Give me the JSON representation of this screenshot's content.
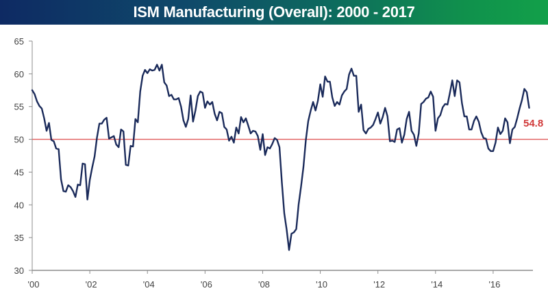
{
  "header": {
    "title": "ISM Manufacturing (Overall): 2000 - 2017"
  },
  "colors": {
    "line": "#1a2a5a",
    "reference": "#e05a5a",
    "end_label": "#d13b3b",
    "axis": "#8c8c8c"
  },
  "chart_data": {
    "type": "line",
    "title": "ISM Manufacturing (Overall): 2000 - 2017",
    "xlabel": "",
    "ylabel": "",
    "ylim": [
      30,
      65
    ],
    "yticks": [
      30,
      35,
      40,
      45,
      50,
      55,
      60,
      65
    ],
    "ytick_labels": [
      "30",
      "35",
      "40",
      "45",
      "50",
      "55",
      "60",
      "65"
    ],
    "xlim": [
      2000.0,
      2017.5
    ],
    "xticks": [
      2000,
      2002,
      2004,
      2006,
      2008,
      2010,
      2012,
      2014,
      2016
    ],
    "xtick_labels": [
      "'00",
      "'02",
      "'04",
      "'06",
      "'08",
      "'10",
      "'12",
      "'14",
      "'16"
    ],
    "grid": false,
    "legend": "none",
    "reference_line": {
      "y": 50,
      "label": ""
    },
    "end_annotation": "54.8",
    "start": "2000-01",
    "frequency": "monthly",
    "series": [
      {
        "name": "ISM Manufacturing",
        "values": [
          57.5,
          56.9,
          55.8,
          55.1,
          54.7,
          53.2,
          51.3,
          52.5,
          49.9,
          49.7,
          48.6,
          48.5,
          43.9,
          42.1,
          42.0,
          43.0,
          42.7,
          42.1,
          41.2,
          43.1,
          43.0,
          46.3,
          46.2,
          40.8,
          43.8,
          45.7,
          47.4,
          50.3,
          52.4,
          52.4,
          53.0,
          53.3,
          50.1,
          50.3,
          50.5,
          49.2,
          48.8,
          51.5,
          51.2,
          46.1,
          46.0,
          49.0,
          48.9,
          53.1,
          52.6,
          57.3,
          59.7,
          60.6,
          60.1,
          60.7,
          60.5,
          60.6,
          61.4,
          60.5,
          61.4,
          58.7,
          58.2,
          56.6,
          56.8,
          56.1,
          56.1,
          56.3,
          55.0,
          52.9,
          51.9,
          53.1,
          56.7,
          52.7,
          54.4,
          56.6,
          57.3,
          57.1,
          54.8,
          55.8,
          55.3,
          55.7,
          53.9,
          52.9,
          54.2,
          54.0,
          51.9,
          51.5,
          49.8,
          50.4,
          49.5,
          51.8,
          50.9,
          53.4,
          52.6,
          53.2,
          52.1,
          50.9,
          51.3,
          51.2,
          50.5,
          48.4,
          50.8,
          47.6,
          48.8,
          48.6,
          49.3,
          50.2,
          49.9,
          48.8,
          43.4,
          38.7,
          36.2,
          33.1,
          35.6,
          35.8,
          36.3,
          40.1,
          42.8,
          45.8,
          49.9,
          52.8,
          54.4,
          55.7,
          54.4,
          55.9,
          58.4,
          56.5,
          59.6,
          58.8,
          58.8,
          56.4,
          55.1,
          55.7,
          55.3,
          56.7,
          57.3,
          57.7,
          59.9,
          60.8,
          59.7,
          59.7,
          54.2,
          55.3,
          51.4,
          50.9,
          51.6,
          51.8,
          52.2,
          53.1,
          54.1,
          52.4,
          53.4,
          54.8,
          53.5,
          49.7,
          49.8,
          49.6,
          51.5,
          51.7,
          49.5,
          50.7,
          53.1,
          54.2,
          51.3,
          50.7,
          49.0,
          50.9,
          55.4,
          55.7,
          56.2,
          56.4,
          57.3,
          56.5,
          51.3,
          53.2,
          53.7,
          54.9,
          55.4,
          55.3,
          57.1,
          59.0,
          56.6,
          59.0,
          58.7,
          55.5,
          53.5,
          53.5,
          51.5,
          51.5,
          52.8,
          53.5,
          52.7,
          51.1,
          50.2,
          50.1,
          48.6,
          48.2,
          48.2,
          49.5,
          51.8,
          50.8,
          51.3,
          53.2,
          52.6,
          49.4,
          51.5,
          51.9,
          53.2,
          54.7,
          56.0,
          57.7,
          57.2,
          54.8
        ]
      }
    ]
  }
}
